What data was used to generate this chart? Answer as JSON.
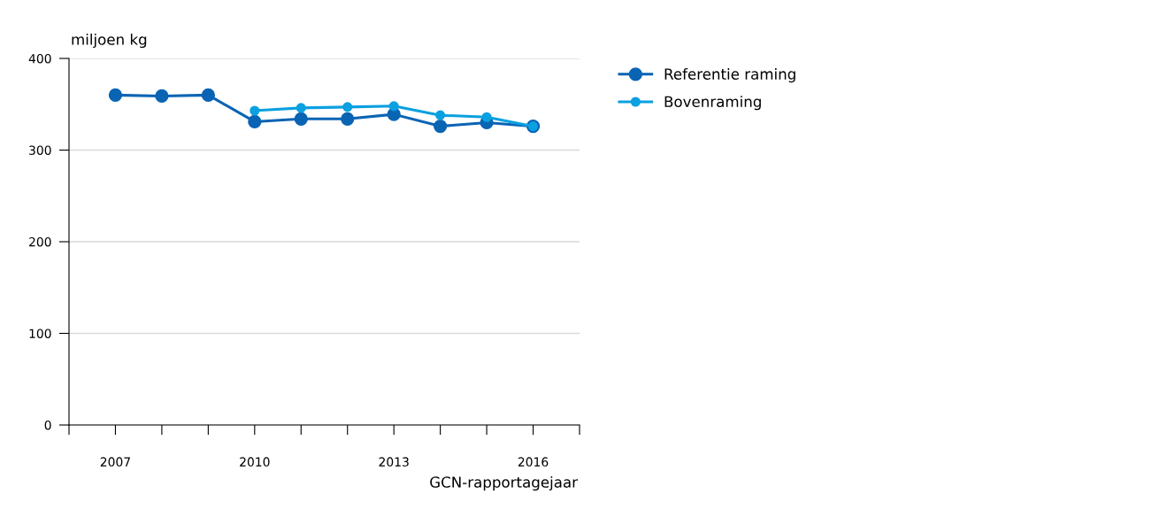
{
  "chart_data": {
    "type": "line",
    "ylabel": "miljoen kg",
    "xlabel": "GCN-rapportagejaar",
    "x": [
      2007,
      2008,
      2009,
      2010,
      2011,
      2012,
      2013,
      2014,
      2015,
      2016
    ],
    "series": [
      {
        "name": "Referentie raming",
        "color": "#0a64b4",
        "values": [
          360,
          359,
          360,
          331,
          334,
          334,
          339,
          326,
          330,
          326
        ]
      },
      {
        "name": "Bovenraming",
        "color": "#0ba0e0",
        "values": [
          null,
          null,
          null,
          343,
          346,
          347,
          348,
          338,
          336,
          326
        ]
      }
    ],
    "xlim": [
      2006,
      2017
    ],
    "xticks": [
      {
        "value": 2006,
        "label": null
      },
      2007,
      {
        "value": 2008,
        "label": null
      },
      {
        "value": 2009,
        "label": null
      },
      2010,
      {
        "value": 2011,
        "label": null
      },
      {
        "value": 2012,
        "label": null
      },
      2013,
      {
        "value": 2014,
        "label": null
      },
      {
        "value": 2015,
        "label": null
      },
      2016,
      {
        "value": 2017,
        "label": null
      }
    ],
    "ylim": [
      0,
      400
    ],
    "yticks": [
      0,
      100,
      200,
      300,
      400
    ],
    "grid": "y",
    "legend": "top right",
    "marker": "circle",
    "line_style": "solid"
  }
}
